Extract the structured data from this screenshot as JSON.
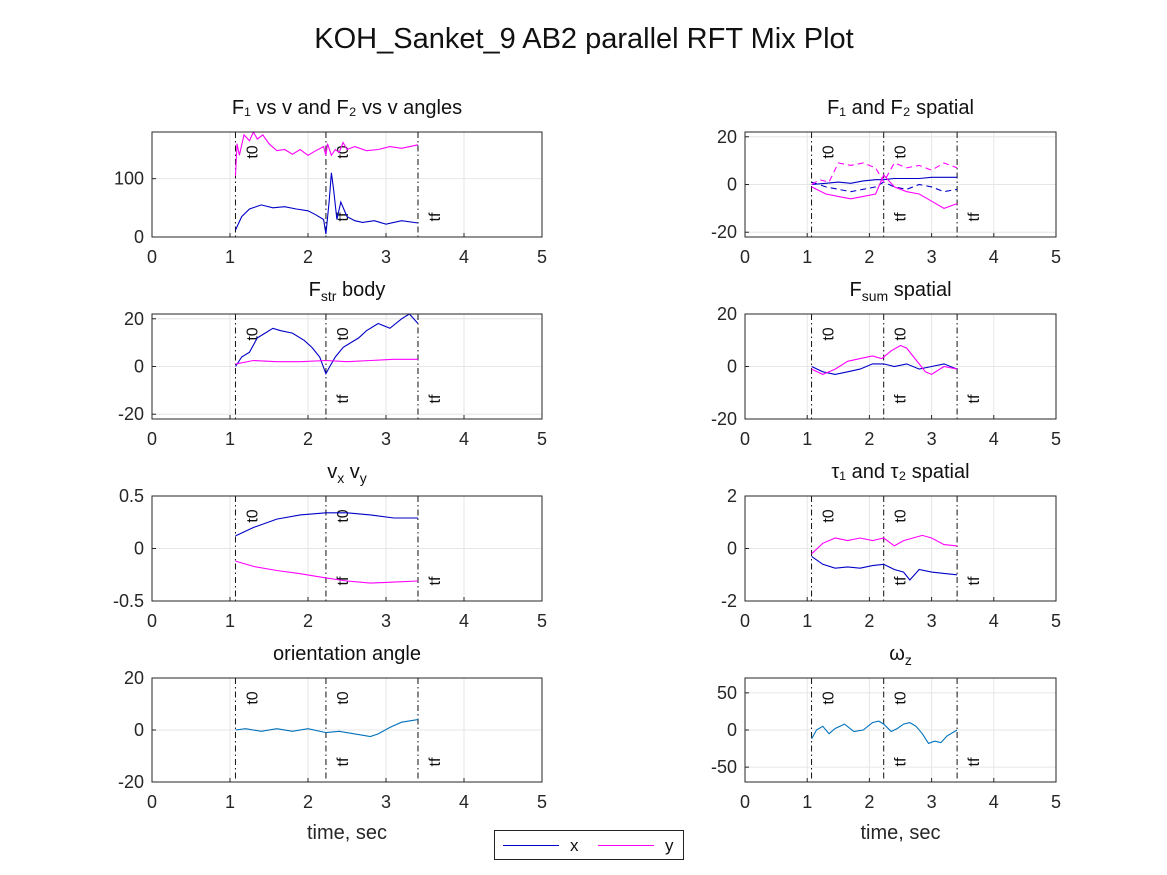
{
  "figure": {
    "title": "KOH_Sanket_9 AB2 parallel RFT Mix Plot"
  },
  "legend": [
    {
      "label": "x",
      "color": "#0000c8"
    },
    {
      "label": "y",
      "color": "#ff00ff"
    }
  ],
  "markers": {
    "t0_label": "t0",
    "tf_label": "tf",
    "lines": [
      1.07,
      2.23,
      3.41
    ]
  },
  "chart_data": [
    {
      "type": "line",
      "title": "F₁ vs v and F₂ vs v angles",
      "xlabel": "",
      "ylabel": "",
      "xlim": [
        0,
        5
      ],
      "ylim": [
        0,
        180
      ],
      "xticks": [
        "0",
        "1",
        "2",
        "3",
        "4",
        "5"
      ],
      "yticks": [
        {
          "v": 0,
          "label": "0"
        },
        {
          "v": 100,
          "label": "100"
        }
      ],
      "grid": true,
      "series": [
        {
          "color": "#0000c8",
          "x": [
            1.07,
            1.15,
            1.25,
            1.4,
            1.55,
            1.7,
            1.85,
            2.0,
            2.1,
            2.2,
            2.23,
            2.27,
            2.3,
            2.33,
            2.37,
            2.42,
            2.5,
            2.6,
            2.7,
            2.85,
            3.0,
            3.2,
            3.41
          ],
          "y": [
            12,
            35,
            48,
            55,
            50,
            52,
            48,
            45,
            38,
            30,
            5,
            60,
            110,
            80,
            30,
            60,
            35,
            28,
            25,
            28,
            22,
            28,
            24
          ]
        },
        {
          "color": "#ff00ff",
          "x": [
            1.07,
            1.09,
            1.12,
            1.18,
            1.25,
            1.3,
            1.35,
            1.42,
            1.5,
            1.6,
            1.7,
            1.8,
            1.9,
            2.0,
            2.1,
            2.2,
            2.23,
            2.25,
            2.3,
            2.35,
            2.4,
            2.45,
            2.5,
            2.6,
            2.75,
            2.9,
            3.05,
            3.2,
            3.41
          ],
          "y": [
            105,
            160,
            140,
            175,
            165,
            180,
            168,
            175,
            160,
            148,
            150,
            142,
            150,
            140,
            148,
            155,
            140,
            160,
            140,
            150,
            145,
            162,
            150,
            155,
            148,
            150,
            155,
            152,
            158
          ]
        }
      ]
    },
    {
      "type": "line",
      "title": "F₁ and F₂ spatial",
      "xlabel": "",
      "ylabel": "",
      "xlim": [
        0,
        5
      ],
      "ylim": [
        -22,
        22
      ],
      "xticks": [
        "0",
        "1",
        "2",
        "3",
        "4",
        "5"
      ],
      "yticks": [
        {
          "v": -20,
          "label": "-20"
        },
        {
          "v": 0,
          "label": "0"
        },
        {
          "v": 20,
          "label": "20"
        }
      ],
      "grid": true,
      "series": [
        {
          "color": "#0000c8",
          "x": [
            1.07,
            1.3,
            1.5,
            1.7,
            1.9,
            2.1,
            2.23,
            2.4,
            2.6,
            2.8,
            3.0,
            3.2,
            3.41
          ],
          "y": [
            0,
            0.5,
            1,
            0.5,
            1.5,
            2,
            2,
            2.5,
            2.5,
            2.5,
            3,
            3,
            3
          ]
        },
        {
          "color": "#0000c8",
          "dash": "6 4",
          "x": [
            1.07,
            1.3,
            1.5,
            1.7,
            1.9,
            2.1,
            2.23,
            2.4,
            2.6,
            2.8,
            3.0,
            3.2,
            3.41
          ],
          "y": [
            1,
            -1,
            -2,
            -3,
            -2,
            -1,
            1,
            -1,
            -2,
            0,
            -1,
            -3,
            -2
          ]
        },
        {
          "color": "#ff00ff",
          "x": [
            1.07,
            1.3,
            1.5,
            1.7,
            1.9,
            2.1,
            2.23,
            2.4,
            2.6,
            2.8,
            3.0,
            3.2,
            3.41
          ],
          "y": [
            -1,
            -4,
            -5,
            -6,
            -5,
            -4,
            4,
            -1,
            -3,
            -4,
            -7,
            -10,
            -8
          ]
        },
        {
          "color": "#ff00ff",
          "dash": "6 4",
          "x": [
            1.07,
            1.2,
            1.35,
            1.5,
            1.7,
            1.9,
            2.1,
            2.23,
            2.4,
            2.6,
            2.8,
            3.0,
            3.2,
            3.41
          ],
          "y": [
            0,
            2,
            1,
            9,
            8,
            9,
            7,
            1,
            9,
            7,
            8,
            6,
            9,
            7
          ]
        }
      ]
    },
    {
      "type": "line",
      "title": "F_str body",
      "xlabel": "",
      "ylabel": "",
      "xlim": [
        0,
        5
      ],
      "ylim": [
        -22,
        22
      ],
      "xticks": [
        "0",
        "1",
        "2",
        "3",
        "4",
        "5"
      ],
      "yticks": [
        {
          "v": -20,
          "label": "-20"
        },
        {
          "v": 0,
          "label": "0"
        },
        {
          "v": 20,
          "label": "20"
        }
      ],
      "grid": true,
      "series": [
        {
          "color": "#0000c8",
          "x": [
            1.07,
            1.15,
            1.25,
            1.35,
            1.45,
            1.55,
            1.65,
            1.8,
            1.95,
            2.05,
            2.15,
            2.23,
            2.28,
            2.35,
            2.45,
            2.55,
            2.65,
            2.75,
            2.9,
            3.05,
            3.2,
            3.3,
            3.41
          ],
          "y": [
            0,
            4,
            6,
            12,
            14,
            16,
            15,
            14,
            11,
            8,
            4,
            -3,
            0,
            4,
            8,
            10,
            12,
            15,
            18,
            16,
            20,
            22,
            18
          ]
        },
        {
          "color": "#ff00ff",
          "x": [
            1.07,
            1.3,
            1.6,
            1.9,
            2.23,
            2.5,
            2.8,
            3.1,
            3.41
          ],
          "y": [
            1,
            2.5,
            2,
            2,
            2.5,
            2,
            2.5,
            3,
            3
          ]
        }
      ]
    },
    {
      "type": "line",
      "title": "F_sum spatial",
      "xlabel": "",
      "ylabel": "",
      "xlim": [
        0,
        5
      ],
      "ylim": [
        -20,
        20
      ],
      "xticks": [
        "0",
        "1",
        "2",
        "3",
        "4",
        "5"
      ],
      "yticks": [
        {
          "v": -20,
          "label": "-20"
        },
        {
          "v": 0,
          "label": "0"
        },
        {
          "v": 20,
          "label": "20"
        }
      ],
      "grid": true,
      "series": [
        {
          "color": "#0000c8",
          "x": [
            1.07,
            1.25,
            1.45,
            1.65,
            1.85,
            2.05,
            2.23,
            2.4,
            2.6,
            2.8,
            3.0,
            3.2,
            3.41
          ],
          "y": [
            0,
            -2,
            -3,
            -2,
            -1,
            1,
            1,
            0,
            1,
            -1,
            0,
            1,
            -1
          ]
        },
        {
          "color": "#ff00ff",
          "x": [
            1.07,
            1.25,
            1.45,
            1.65,
            1.85,
            2.05,
            2.2,
            2.35,
            2.5,
            2.6,
            2.7,
            2.8,
            2.9,
            3.0,
            3.2,
            3.41
          ],
          "y": [
            -1,
            -3,
            -1,
            2,
            3,
            4,
            3,
            6,
            8,
            7,
            4,
            1,
            -2,
            -3,
            0,
            -1
          ]
        }
      ]
    },
    {
      "type": "line",
      "title": "v_x v_y",
      "xlabel": "",
      "ylabel": "",
      "xlim": [
        0,
        5
      ],
      "ylim": [
        -0.5,
        0.5
      ],
      "xticks": [
        "0",
        "1",
        "2",
        "3",
        "4",
        "5"
      ],
      "yticks": [
        {
          "v": -0.5,
          "label": "-0.5"
        },
        {
          "v": 0,
          "label": "0"
        },
        {
          "v": 0.5,
          "label": "0.5"
        }
      ],
      "grid": true,
      "series": [
        {
          "color": "#0000c8",
          "x": [
            1.07,
            1.3,
            1.6,
            1.9,
            2.23,
            2.5,
            2.8,
            3.1,
            3.41
          ],
          "y": [
            0.12,
            0.2,
            0.28,
            0.32,
            0.34,
            0.34,
            0.32,
            0.29,
            0.29
          ]
        },
        {
          "color": "#ff00ff",
          "x": [
            1.07,
            1.3,
            1.6,
            1.9,
            2.23,
            2.5,
            2.8,
            3.1,
            3.41
          ],
          "y": [
            -0.12,
            -0.17,
            -0.21,
            -0.24,
            -0.28,
            -0.31,
            -0.33,
            -0.32,
            -0.31
          ]
        }
      ]
    },
    {
      "type": "line",
      "title": "τ₁ and τ₂ spatial",
      "xlabel": "",
      "ylabel": "",
      "xlim": [
        0,
        5
      ],
      "ylim": [
        -2,
        2
      ],
      "xticks": [
        "0",
        "1",
        "2",
        "3",
        "4",
        "5"
      ],
      "yticks": [
        {
          "v": -2,
          "label": "-2"
        },
        {
          "v": 0,
          "label": "0"
        },
        {
          "v": 2,
          "label": "2"
        }
      ],
      "grid": true,
      "series": [
        {
          "color": "#0000c8",
          "x": [
            1.07,
            1.25,
            1.45,
            1.65,
            1.85,
            2.05,
            2.23,
            2.4,
            2.55,
            2.65,
            2.8,
            3.0,
            3.2,
            3.41
          ],
          "y": [
            -0.3,
            -0.6,
            -0.75,
            -0.7,
            -0.75,
            -0.65,
            -0.6,
            -0.8,
            -0.9,
            -1.2,
            -0.8,
            -0.9,
            -0.95,
            -1.0
          ]
        },
        {
          "color": "#ff00ff",
          "x": [
            1.07,
            1.25,
            1.45,
            1.65,
            1.85,
            2.05,
            2.23,
            2.4,
            2.55,
            2.7,
            2.85,
            3.0,
            3.2,
            3.41
          ],
          "y": [
            -0.2,
            0.2,
            0.4,
            0.3,
            0.4,
            0.3,
            0.4,
            0.1,
            0.3,
            0.4,
            0.5,
            0.4,
            0.15,
            0.1
          ]
        }
      ]
    },
    {
      "type": "line",
      "title": "orientation angle",
      "xlabel": "time, sec",
      "ylabel": "",
      "xlim": [
        0,
        5
      ],
      "ylim": [
        -20,
        20
      ],
      "xticks": [
        "0",
        "1",
        "2",
        "3",
        "4",
        "5"
      ],
      "yticks": [
        {
          "v": -20,
          "label": "-20"
        },
        {
          "v": 0,
          "label": "0"
        },
        {
          "v": 20,
          "label": "20"
        }
      ],
      "grid": true,
      "series": [
        {
          "color": "#0072bd",
          "x": [
            1.07,
            1.2,
            1.4,
            1.6,
            1.8,
            2.0,
            2.23,
            2.4,
            2.6,
            2.8,
            2.9,
            3.05,
            3.2,
            3.41
          ],
          "y": [
            0,
            0.5,
            -0.5,
            0.5,
            -0.5,
            0.5,
            -1,
            -0.5,
            -1.5,
            -2.5,
            -1.5,
            1,
            3,
            4
          ]
        }
      ]
    },
    {
      "type": "line",
      "title": "ω_z",
      "xlabel": "time, sec",
      "ylabel": "",
      "xlim": [
        0,
        5
      ],
      "ylim": [
        -70,
        70
      ],
      "xticks": [
        "0",
        "1",
        "2",
        "3",
        "4",
        "5"
      ],
      "yticks": [
        {
          "v": -50,
          "label": "-50"
        },
        {
          "v": 0,
          "label": "0"
        },
        {
          "v": 50,
          "label": "50"
        }
      ],
      "grid": true,
      "series": [
        {
          "color": "#0072bd",
          "x": [
            1.07,
            1.15,
            1.25,
            1.35,
            1.45,
            1.6,
            1.75,
            1.9,
            2.05,
            2.15,
            2.23,
            2.35,
            2.45,
            2.55,
            2.65,
            2.75,
            2.85,
            2.95,
            3.05,
            3.15,
            3.25,
            3.41
          ],
          "y": [
            -12,
            0,
            5,
            -5,
            2,
            8,
            -2,
            0,
            10,
            12,
            8,
            -2,
            2,
            8,
            10,
            5,
            -5,
            -18,
            -15,
            -17,
            -8,
            0
          ]
        }
      ]
    }
  ]
}
